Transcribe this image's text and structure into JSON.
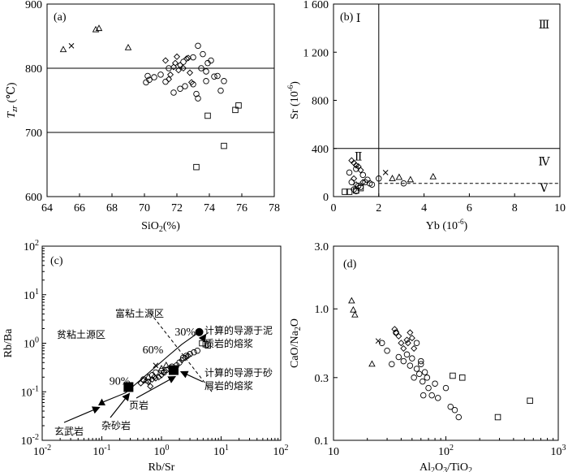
{
  "chart_data": [
    {
      "panel": "(a)",
      "type": "scatter",
      "xlabel": "SiO2(%)",
      "ylabel": "Tzr(°C)",
      "xlim": [
        64,
        78
      ],
      "ylim": [
        600,
        900
      ],
      "xticks": [
        "64",
        "66",
        "68",
        "70",
        "72",
        "74",
        "76",
        "78"
      ],
      "yticks": [
        "600",
        "700",
        "800",
        "900"
      ],
      "hlines": [
        700,
        800
      ],
      "series": [
        {
          "marker": "triangle",
          "points": [
            [
              65.0,
              829
            ],
            [
              67.0,
              860
            ],
            [
              67.2,
              862
            ],
            [
              69.0,
              832
            ]
          ]
        },
        {
          "marker": "cross",
          "points": [
            [
              65.5,
              835
            ]
          ]
        },
        {
          "marker": "diamond",
          "points": [
            [
              71.3,
              812
            ],
            [
              71.6,
              790
            ],
            [
              71.9,
              808
            ],
            [
              72.0,
              818
            ],
            [
              72.2,
              805
            ],
            [
              72.4,
              800
            ],
            [
              72.6,
              815
            ],
            [
              72.8,
              793
            ],
            [
              72.9,
              778
            ],
            [
              71.5,
              783
            ],
            [
              72.1,
              797
            ],
            [
              71.8,
              802
            ],
            [
              72.7,
              816
            ]
          ]
        },
        {
          "marker": "circle",
          "points": [
            [
              70.1,
              778
            ],
            [
              70.2,
              788
            ],
            [
              70.3,
              782
            ],
            [
              70.6,
              786
            ],
            [
              71.0,
              790
            ],
            [
              71.3,
              779
            ],
            [
              71.8,
              762
            ],
            [
              72.2,
              768
            ],
            [
              72.5,
              772
            ],
            [
              73.0,
              775
            ],
            [
              73.2,
              760
            ],
            [
              73.3,
              753
            ],
            [
              73.5,
              800
            ],
            [
              73.6,
              822
            ],
            [
              73.8,
              780
            ],
            [
              73.9,
              808
            ],
            [
              74.1,
              812
            ],
            [
              74.3,
              787
            ],
            [
              74.5,
              788
            ],
            [
              74.7,
              765
            ],
            [
              74.9,
              780
            ],
            [
              73.3,
              835
            ],
            [
              73.0,
              817
            ],
            [
              72.4,
              810
            ],
            [
              71.5,
              800
            ],
            [
              73.8,
              795
            ]
          ]
        },
        {
          "marker": "square",
          "points": [
            [
              73.2,
              646
            ],
            [
              73.9,
              726
            ],
            [
              74.9,
              679
            ],
            [
              75.6,
              735
            ],
            [
              75.8,
              742
            ]
          ]
        }
      ]
    },
    {
      "panel": "(b)",
      "type": "scatter",
      "xlabel": "Yb (10⁻⁶)",
      "ylabel": "Sr (10⁻⁶)",
      "xlim": [
        0,
        10
      ],
      "ylim": [
        0,
        1600
      ],
      "xticks": [
        "0",
        "2",
        "4",
        "6",
        "8",
        "10"
      ],
      "yticks": [
        "0",
        "400",
        "800",
        "1 200",
        "1 600"
      ],
      "vlines": [
        2
      ],
      "hlines": [
        400
      ],
      "dashed_hline": 110,
      "regions": [
        "Ⅰ",
        "Ⅱ",
        "Ⅲ",
        "Ⅳ",
        "Ⅴ"
      ],
      "series": [
        {
          "marker": "triangle",
          "points": [
            [
              2.6,
              150
            ],
            [
              2.9,
              160
            ],
            [
              3.4,
              140
            ],
            [
              4.4,
              165
            ]
          ]
        },
        {
          "marker": "cross",
          "points": [
            [
              2.3,
              200
            ]
          ]
        },
        {
          "marker": "diamond",
          "points": [
            [
              0.8,
              300
            ],
            [
              0.9,
              280
            ],
            [
              1.0,
              260
            ],
            [
              1.1,
              250
            ],
            [
              1.2,
              220
            ],
            [
              0.9,
              150
            ],
            [
              1.3,
              120
            ],
            [
              1.0,
              100
            ]
          ]
        },
        {
          "marker": "circle",
          "points": [
            [
              0.7,
              200
            ],
            [
              0.8,
              120
            ],
            [
              0.9,
              60
            ],
            [
              1.0,
              230
            ],
            [
              1.1,
              90
            ],
            [
              1.2,
              80
            ],
            [
              1.3,
              180
            ],
            [
              1.4,
              120
            ],
            [
              1.5,
              140
            ],
            [
              1.6,
              110
            ],
            [
              1.7,
              100
            ],
            [
              2.0,
              150
            ],
            [
              3.1,
              110
            ],
            [
              1.0,
              45
            ]
          ]
        },
        {
          "marker": "square",
          "points": [
            [
              0.5,
              40
            ],
            [
              0.7,
              40
            ],
            [
              1.0,
              50
            ],
            [
              1.2,
              70
            ]
          ]
        }
      ]
    },
    {
      "panel": "(c)",
      "type": "scatter",
      "xlabel": "Rb/Sr",
      "ylabel": "Rb/Ba",
      "xscale": "log",
      "yscale": "log",
      "xlim": [
        0.01,
        100
      ],
      "ylim": [
        0.01,
        100
      ],
      "xticks": [
        "10⁻²",
        "10⁻¹",
        "10⁰",
        "10¹",
        "10²"
      ],
      "yticks": [
        "10⁻²",
        "10⁻¹",
        "10⁰",
        "10¹",
        "10²"
      ],
      "mixing_curve": [
        [
          0.1,
          0.06
        ],
        [
          0.25,
          0.095
        ],
        [
          1.3,
          0.55
        ],
        [
          2.2,
          0.95
        ],
        [
          4.3,
          1.7
        ]
      ],
      "percent_labels": [
        "90%",
        "60%",
        "30%"
      ],
      "annotations": [
        "富粘土源区",
        "贫粘土源区",
        "计算的导源于泥质岩的熔浆",
        "计算的导源于砂屑岩的熔浆",
        "页岩",
        "杂砂岩",
        "玄武岩"
      ],
      "series": [
        {
          "marker": "triangle",
          "points": [
            [
              0.55,
              0.17
            ],
            [
              0.6,
              0.2
            ],
            [
              1.0,
              0.3
            ],
            [
              1.2,
              0.35
            ]
          ]
        },
        {
          "marker": "cross",
          "points": [
            [
              0.8,
              0.35
            ]
          ]
        },
        {
          "marker": "diamond",
          "points": [
            [
              0.45,
              0.15
            ],
            [
              0.5,
              0.17
            ],
            [
              0.6,
              0.16
            ],
            [
              0.7,
              0.18
            ],
            [
              0.75,
              0.2
            ],
            [
              0.8,
              0.19
            ],
            [
              0.9,
              0.2
            ],
            [
              1.0,
              0.22
            ],
            [
              1.1,
              0.26
            ],
            [
              1.3,
              0.3
            ],
            [
              2.2,
              0.45
            ],
            [
              2.5,
              0.5
            ],
            [
              2.8,
              0.55
            ],
            [
              0.65,
              0.13
            ]
          ]
        },
        {
          "marker": "circle",
          "points": [
            [
              0.5,
              0.18
            ],
            [
              0.7,
              0.22
            ],
            [
              0.8,
              0.25
            ],
            [
              1.0,
              0.27
            ],
            [
              1.2,
              0.28
            ],
            [
              1.5,
              0.33
            ],
            [
              1.8,
              0.35
            ],
            [
              2.0,
              0.4
            ],
            [
              2.3,
              0.5
            ],
            [
              2.6,
              0.55
            ],
            [
              3.0,
              0.6
            ],
            [
              3.5,
              0.65
            ],
            [
              4.0,
              0.7
            ],
            [
              1.1,
              0.25
            ]
          ]
        },
        {
          "marker": "square",
          "points": [
            [
              4.8,
              1.0
            ],
            [
              5.5,
              0.95
            ],
            [
              6.0,
              0.9
            ]
          ]
        },
        {
          "marker": "filled-circle",
          "points": [
            [
              4.3,
              1.7
            ]
          ]
        },
        {
          "marker": "filled-square",
          "points": [
            [
              0.28,
              0.125
            ],
            [
              1.6,
              0.28
            ]
          ]
        },
        {
          "marker": "filled-triangle",
          "points": [
            [
              0.1,
              0.06
            ]
          ]
        }
      ]
    },
    {
      "panel": "(d)",
      "type": "scatter",
      "xlabel": "Al2O3/TiO2",
      "ylabel": "CaO/Na2O",
      "xscale": "log",
      "yscale": "log",
      "xlim": [
        10,
        1000
      ],
      "ylim": [
        0.1,
        3.0
      ],
      "xticks": [
        "10",
        "10²",
        "10³"
      ],
      "yticks": [
        "0.1",
        "0.3",
        "1.0",
        "3.0"
      ],
      "series": [
        {
          "marker": "triangle",
          "points": [
            [
              14.5,
              1.15
            ],
            [
              15.0,
              0.98
            ],
            [
              15.5,
              0.9
            ],
            [
              22.0,
              0.38
            ]
          ]
        },
        {
          "marker": "cross",
          "points": [
            [
              25.0,
              0.57
            ]
          ]
        },
        {
          "marker": "diamond",
          "points": [
            [
              35,
              0.7
            ],
            [
              36,
              0.66
            ],
            [
              38,
              0.62
            ],
            [
              40,
              0.55
            ],
            [
              42,
              0.5
            ],
            [
              45,
              0.58
            ],
            [
              48,
              0.66
            ],
            [
              50,
              0.6
            ],
            [
              52,
              0.5
            ],
            [
              46,
              0.55
            ]
          ]
        },
        {
          "marker": "circle",
          "points": [
            [
              27,
              0.55
            ],
            [
              30,
              0.48
            ],
            [
              33,
              0.38
            ],
            [
              36,
              0.66
            ],
            [
              38,
              0.43
            ],
            [
              42,
              0.4
            ],
            [
              45,
              0.45
            ],
            [
              48,
              0.37
            ],
            [
              50,
              0.42
            ],
            [
              52,
              0.3
            ],
            [
              55,
              0.35
            ],
            [
              58,
              0.32
            ],
            [
              60,
              0.4
            ],
            [
              62,
              0.28
            ],
            [
              63,
              0.22
            ],
            [
              65,
              0.33
            ],
            [
              68,
              0.3
            ],
            [
              70,
              0.25
            ],
            [
              75,
              0.22
            ],
            [
              80,
              0.27
            ],
            [
              85,
              0.21
            ],
            [
              100,
              0.25
            ],
            [
              110,
              0.18
            ],
            [
              120,
              0.17
            ],
            [
              130,
              0.15
            ],
            [
              55,
              0.55
            ],
            [
              60,
              0.38
            ]
          ]
        },
        {
          "marker": "square",
          "points": [
            [
              115,
              0.31
            ],
            [
              140,
              0.3
            ],
            [
              290,
              0.15
            ],
            [
              560,
              0.2
            ]
          ]
        }
      ]
    }
  ]
}
